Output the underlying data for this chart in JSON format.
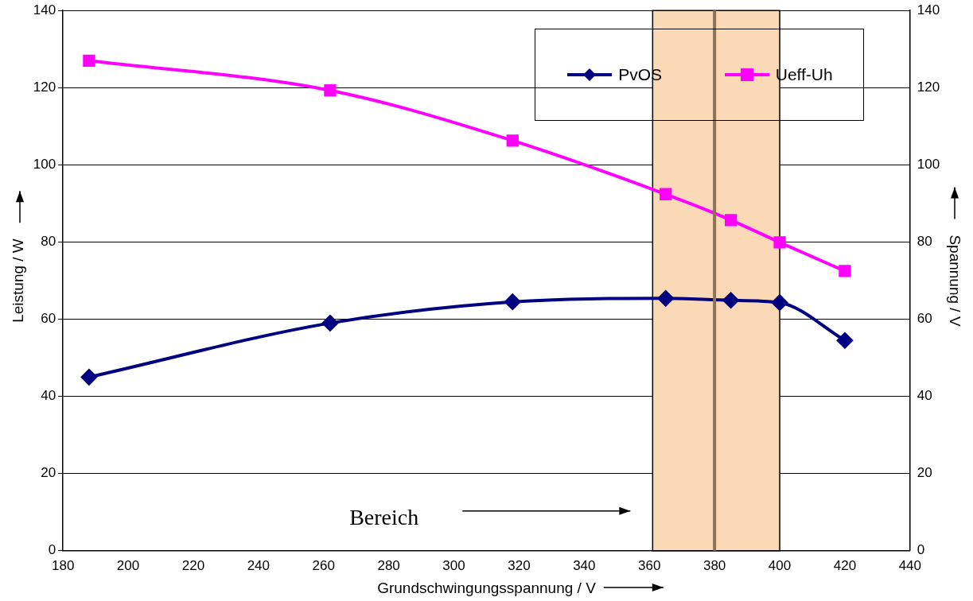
{
  "chart_data": {
    "type": "line",
    "xlabel": "Grundschwingungsspannung / V",
    "ylabel": "Leistung / W",
    "y2label": "Spannung / V",
    "annotations": [
      "Bereich"
    ],
    "xlim": [
      180,
      440
    ],
    "xticks": [
      180,
      200,
      220,
      240,
      260,
      280,
      300,
      320,
      340,
      360,
      380,
      400,
      420,
      440
    ],
    "ylim": [
      0,
      140
    ],
    "yticks": [
      0,
      20,
      40,
      60,
      80,
      100,
      120,
      140
    ],
    "y2lim": [
      0,
      140
    ],
    "y2ticks": [
      0,
      20,
      40,
      60,
      80,
      100,
      120,
      140
    ],
    "grid": "y",
    "legend": "top right",
    "series": [
      {
        "name": "PvOS",
        "color": "#000080",
        "marker": "diamond",
        "x": [
          188,
          262,
          318,
          365,
          385,
          400,
          420
        ],
        "values": [
          45,
          59,
          64.5,
          65.4,
          64.9,
          64.3,
          54.5
        ]
      },
      {
        "name": "Ueff-Uh",
        "color": "#ff00ff",
        "marker": "square",
        "axis": "y2",
        "x": [
          188,
          262,
          318,
          365,
          385,
          400,
          420
        ],
        "values": [
          127,
          119.3,
          106.3,
          92.4,
          85.7,
          79.9,
          72.5
        ]
      }
    ],
    "bands": [
      {
        "axis": "x",
        "from": 361,
        "to": 400,
        "color": "#fcd9b6"
      }
    ],
    "ref_lines": [
      {
        "axis": "x",
        "value": 380,
        "color": "#8b7355"
      }
    ]
  }
}
